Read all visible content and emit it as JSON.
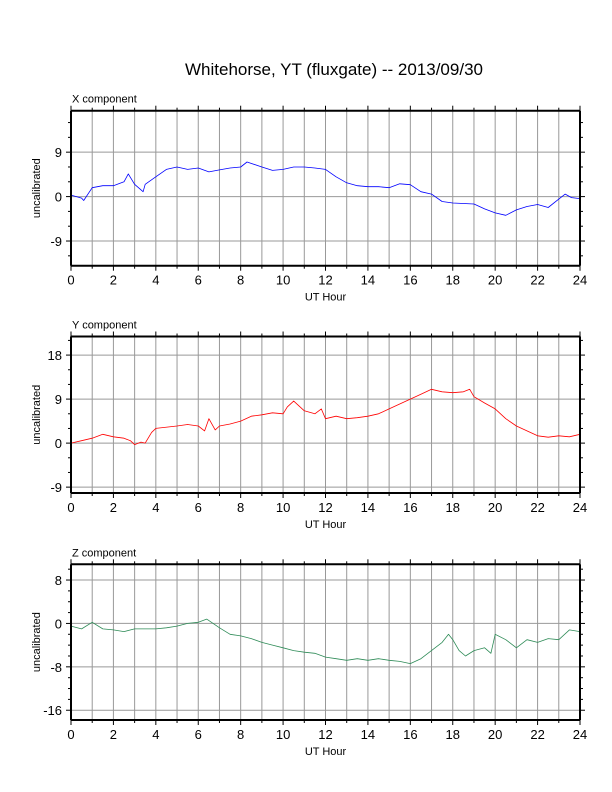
{
  "title": "Whitehorse, YT (fluxgate) -- 2013/09/30",
  "chart_data": [
    {
      "type": "line",
      "title": "X component",
      "xlabel": "UT Hour",
      "ylabel": "uncalibrated",
      "xlim": [
        0,
        24
      ],
      "ylim": [
        -14,
        17.4
      ],
      "xticks": [
        "0",
        "2",
        "4",
        "6",
        "8",
        "10",
        "12",
        "14",
        "16",
        "18",
        "20",
        "22",
        "24"
      ],
      "yticks": [
        -9,
        0,
        9
      ],
      "ytick_labels": [
        "-9",
        "0",
        "9"
      ],
      "minor_ystep": 3,
      "grid": true,
      "color": "#0000ff",
      "x": [
        0,
        0.5,
        0.6,
        1,
        1.5,
        2,
        2.5,
        2.7,
        3,
        3.4,
        3.5,
        4,
        4.5,
        5,
        5.5,
        6,
        6.5,
        7,
        7.5,
        8,
        8.3,
        9,
        9.5,
        10,
        10.5,
        11,
        11.5,
        12,
        12.5,
        13,
        13.5,
        14,
        14.5,
        15,
        15.5,
        16,
        16.5,
        17,
        17.5,
        18,
        18.5,
        19,
        19.5,
        20,
        20.5,
        21,
        21.5,
        22,
        22.5,
        23,
        23.3,
        23.6,
        24
      ],
      "y": [
        0.3,
        -0.3,
        -0.8,
        1.8,
        2.2,
        2.2,
        3,
        4.6,
        2.5,
        1,
        2.5,
        4,
        5.5,
        6,
        5.5,
        5.8,
        5,
        5.4,
        5.8,
        6,
        7,
        6,
        5.3,
        5.5,
        6,
        6,
        5.8,
        5.5,
        4,
        2.8,
        2.2,
        2,
        2,
        1.8,
        2.6,
        2.4,
        1,
        0.5,
        -1,
        -1.3,
        -1.4,
        -1.5,
        -2.5,
        -3.3,
        -3.8,
        -2.7,
        -2,
        -1.6,
        -2.2,
        -0.5,
        0.5,
        -0.2,
        -0.4
      ]
    },
    {
      "type": "line",
      "title": "Y component",
      "xlabel": "UT Hour",
      "ylabel": "uncalibrated",
      "xlim": [
        0,
        24
      ],
      "ylim": [
        -10.2,
        21.8
      ],
      "xticks": [
        "0",
        "2",
        "4",
        "6",
        "8",
        "10",
        "12",
        "14",
        "16",
        "18",
        "20",
        "22",
        "24"
      ],
      "yticks": [
        -9,
        0,
        9,
        18
      ],
      "ytick_labels": [
        "-9",
        "0",
        "9",
        "18"
      ],
      "minor_ystep": 3,
      "grid": true,
      "color": "#ff0000",
      "x": [
        0,
        0.5,
        1,
        1.5,
        2,
        2.5,
        2.8,
        3,
        3.3,
        3.5,
        3.8,
        4,
        5,
        5.5,
        6,
        6.3,
        6.5,
        6.8,
        7,
        7.5,
        8,
        8.5,
        9,
        9.5,
        10,
        10.2,
        10.5,
        11,
        11.5,
        11.8,
        12,
        12.5,
        13,
        13.5,
        14,
        14.5,
        15,
        15.5,
        16,
        16.5,
        17,
        17.5,
        18,
        18.5,
        18.8,
        19,
        19.5,
        20,
        20.5,
        21,
        21.5,
        22,
        22.5,
        23,
        23.5,
        24
      ],
      "y": [
        0,
        0.5,
        1,
        1.8,
        1.3,
        1,
        0.5,
        -0.3,
        0.2,
        0,
        2.2,
        3,
        3.5,
        3.8,
        3.5,
        2.5,
        5,
        2.7,
        3.5,
        3.9,
        4.5,
        5.5,
        5.8,
        6.2,
        6,
        7.4,
        8.6,
        6.6,
        6,
        7,
        5,
        5.5,
        5,
        5.2,
        5.5,
        6,
        7,
        8,
        9,
        10,
        11,
        10.5,
        10.3,
        10.5,
        11,
        9.5,
        8.2,
        7,
        5,
        3.5,
        2.5,
        1.5,
        1.2,
        1.5,
        1.3,
        1.8
      ]
    },
    {
      "type": "line",
      "title": "Z component",
      "xlabel": "UT Hour",
      "ylabel": "uncalibrated",
      "xlim": [
        0,
        24
      ],
      "ylim": [
        -17.8,
        10.9
      ],
      "xticks": [
        "0",
        "2",
        "4",
        "6",
        "8",
        "10",
        "12",
        "14",
        "16",
        "18",
        "20",
        "22",
        "24"
      ],
      "yticks": [
        -16,
        -8,
        0,
        8
      ],
      "ytick_labels": [
        "-16",
        "-8",
        "0",
        "8"
      ],
      "minor_ystep": 2,
      "grid": true,
      "color": "#2e8b57",
      "x": [
        0,
        0.5,
        1,
        1.5,
        2,
        2.5,
        3,
        3.5,
        4,
        4.5,
        5,
        5.5,
        6,
        6.4,
        7,
        7.5,
        8,
        8.5,
        9,
        9.5,
        10,
        10.5,
        11,
        11.5,
        12,
        12.5,
        13,
        13.5,
        14,
        14.5,
        15,
        15.5,
        16,
        16.5,
        17,
        17.5,
        17.8,
        18,
        18.3,
        18.6,
        19,
        19.5,
        19.8,
        20,
        20.5,
        21,
        21.5,
        22,
        22.5,
        23,
        23.5,
        24
      ],
      "y": [
        -0.5,
        -1,
        0.2,
        -1,
        -1.2,
        -1.5,
        -1,
        -1,
        -1,
        -0.8,
        -0.5,
        0,
        0.2,
        0.8,
        -0.8,
        -2,
        -2.3,
        -2.8,
        -3.5,
        -4,
        -4.5,
        -5,
        -5.3,
        -5.5,
        -6.2,
        -6.5,
        -6.8,
        -6.5,
        -6.8,
        -6.5,
        -6.8,
        -7,
        -7.4,
        -6.5,
        -5,
        -3.5,
        -2,
        -3,
        -5,
        -6,
        -5,
        -4.5,
        -5.5,
        -2,
        -3,
        -4.5,
        -3,
        -3.5,
        -2.8,
        -3,
        -1.2,
        -1.5
      ]
    }
  ]
}
